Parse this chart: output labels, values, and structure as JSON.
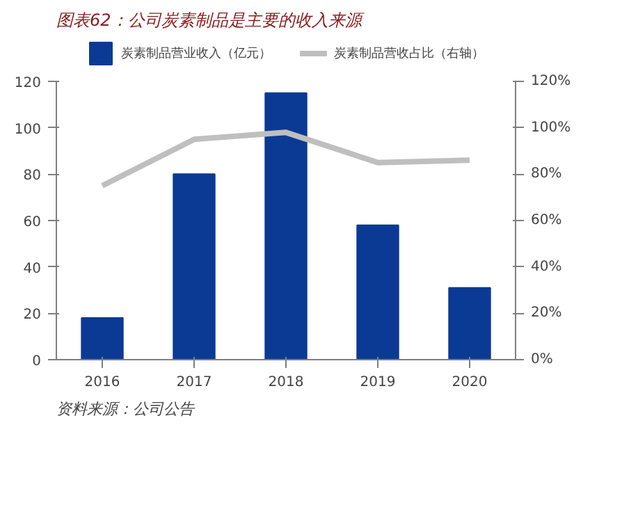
{
  "chart_data": {
    "type": "bar",
    "title": "图表62：公司炭素制品是主要的收入来源",
    "categories": [
      "2016",
      "2017",
      "2018",
      "2019",
      "2020"
    ],
    "series": [
      {
        "name": "炭素制品营业收入（亿元）",
        "color": "#0b3a94",
        "values": [
          18,
          80,
          115,
          58,
          31
        ]
      },
      {
        "name": "炭素制品营收占比（右轴）",
        "color": "#bfbfbf",
        "type": "line",
        "axis": "y2",
        "values": [
          75,
          95,
          98,
          85,
          86
        ]
      }
    ],
    "ylim": [
      0,
      120
    ],
    "yticks": [
      0,
      20,
      40,
      60,
      80,
      100,
      120
    ],
    "y2lim": [
      0,
      120
    ],
    "y2ticks": [
      {
        "value": 0,
        "label": "0%"
      },
      {
        "value": 20,
        "label": "20%"
      },
      {
        "value": 40,
        "label": "40%"
      },
      {
        "value": 60,
        "label": "60%"
      },
      {
        "value": 80,
        "label": "80%"
      },
      {
        "value": 100,
        "label": "100%"
      },
      {
        "value": 120,
        "label": "120%"
      }
    ],
    "legend": "top",
    "grid": false,
    "annotations": [
      "资料来源：公司公告"
    ]
  }
}
